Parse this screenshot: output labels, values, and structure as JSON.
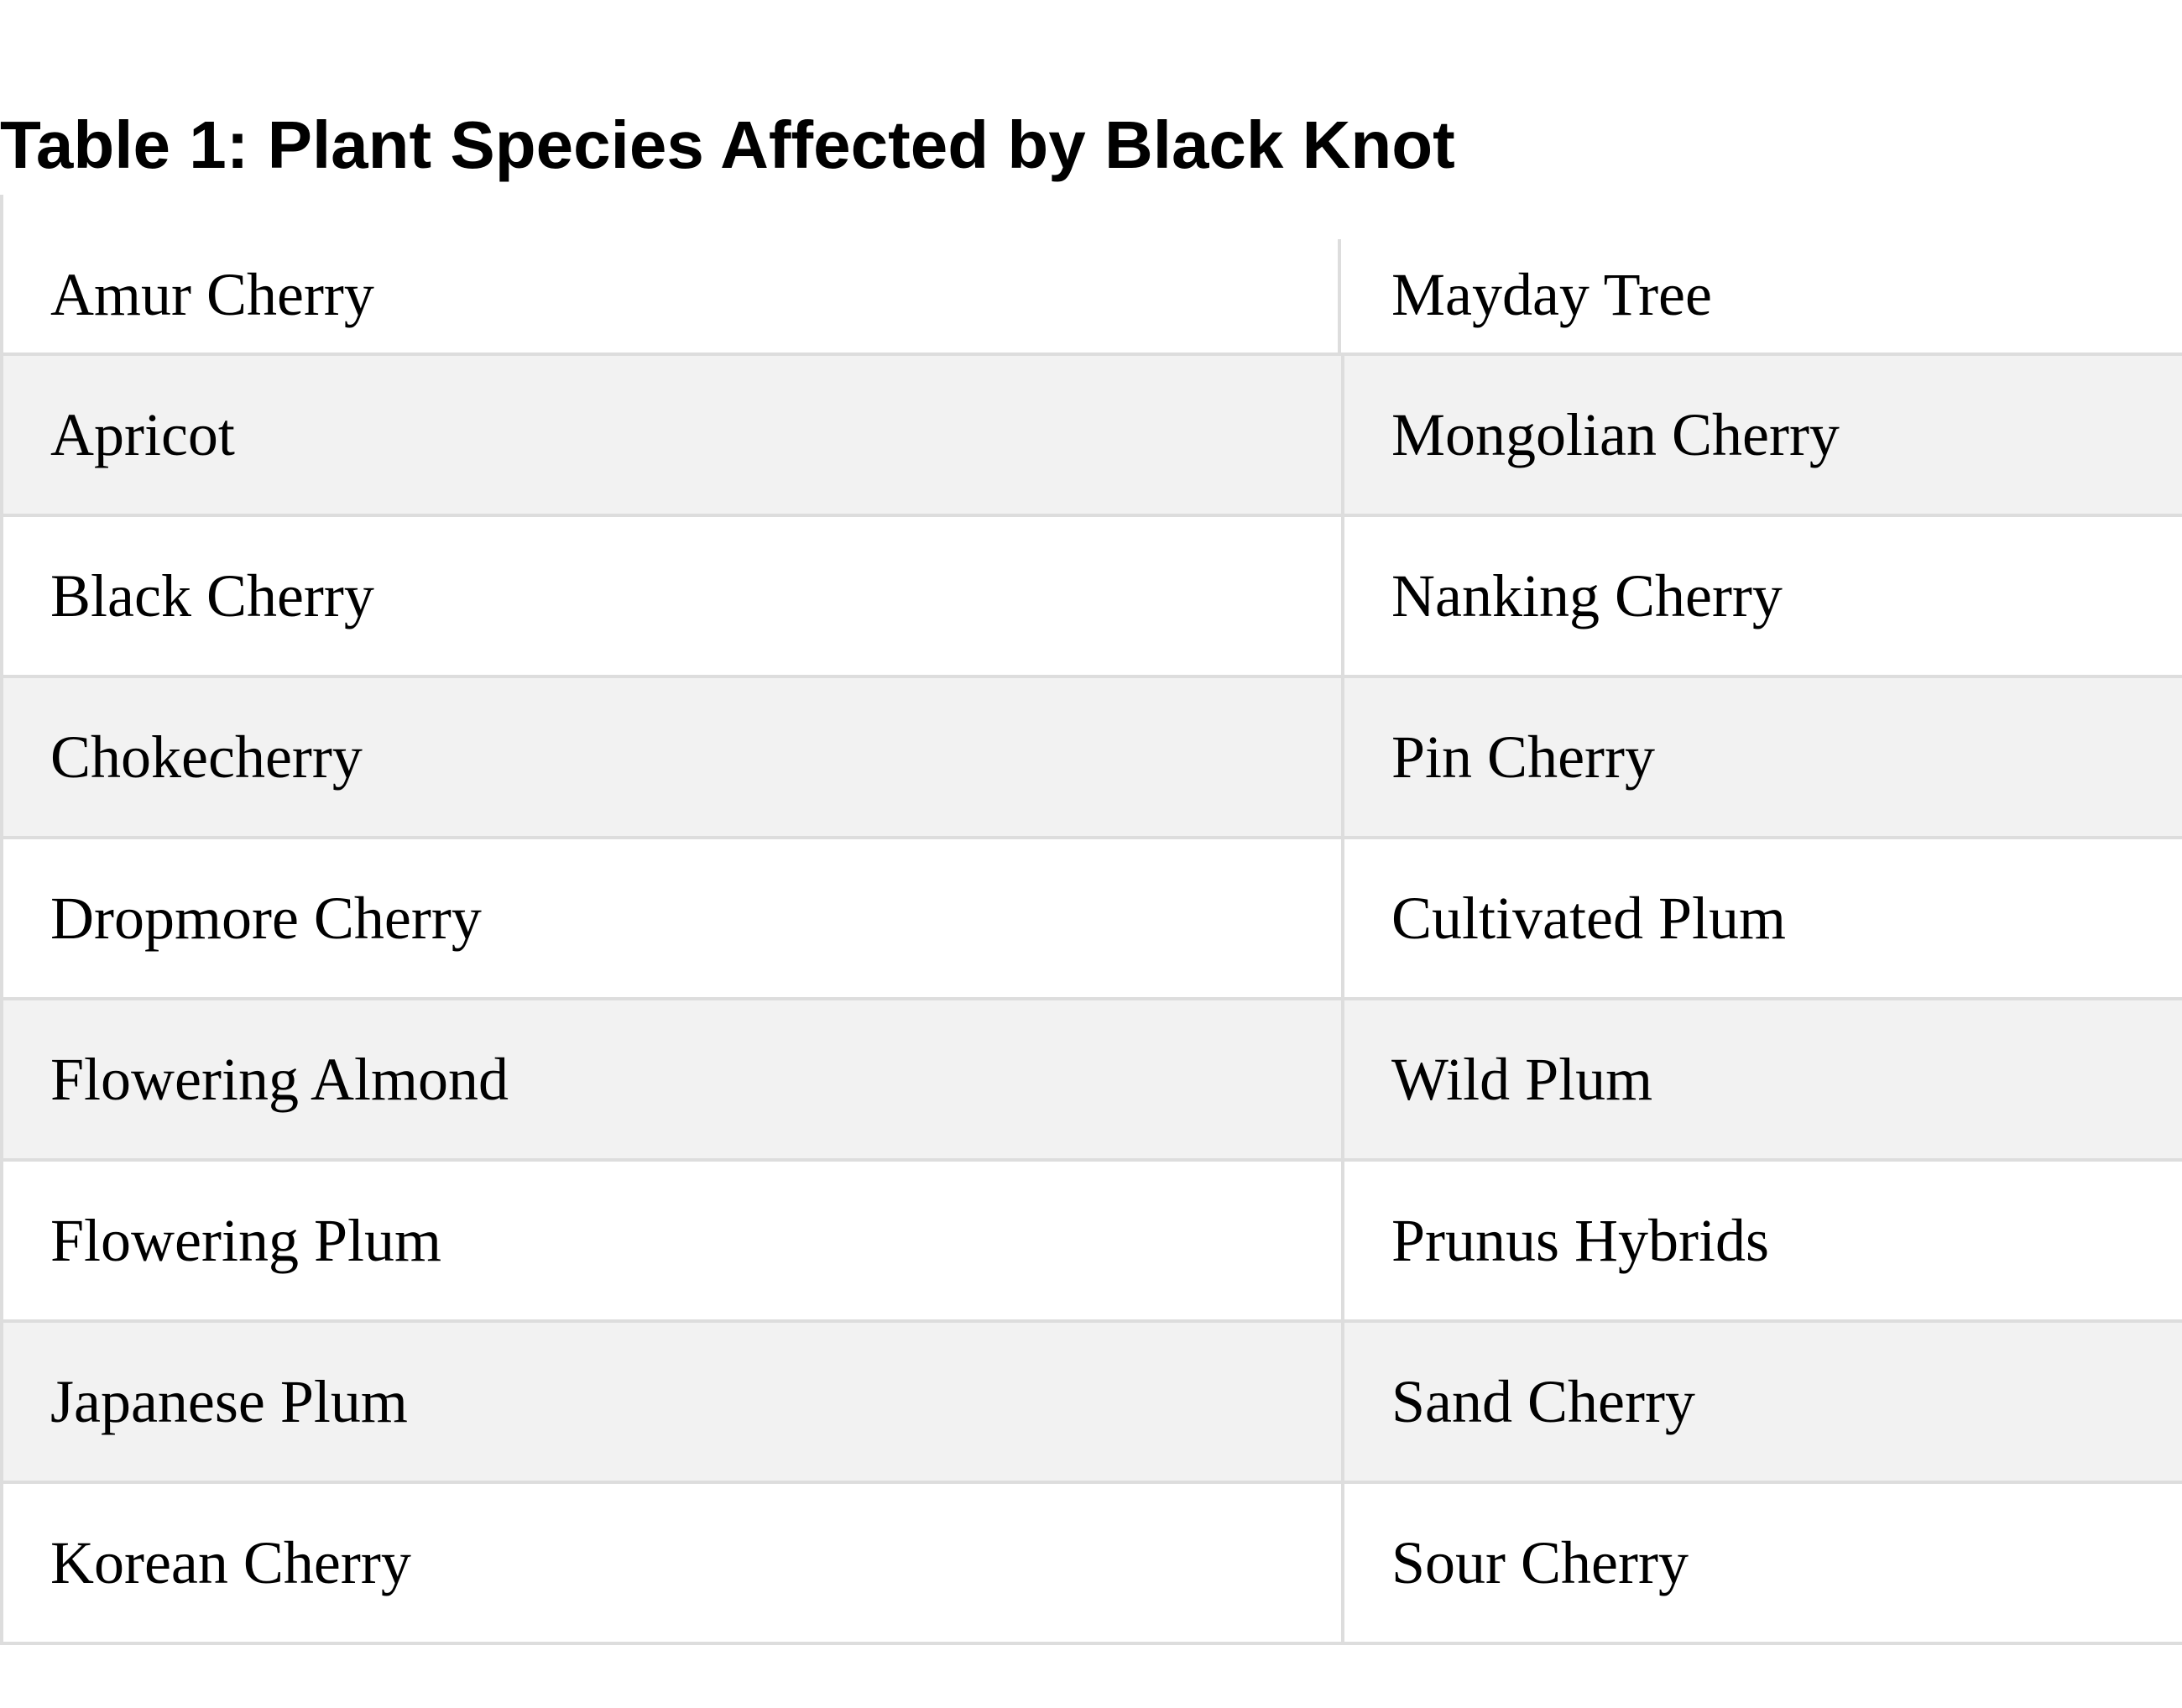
{
  "header": {
    "title": "Table 1: Plant Species Affected by Black Knot"
  },
  "table": {
    "rows": [
      [
        "Amur Cherry",
        "Mayday Tree"
      ],
      [
        "Apricot",
        "Mongolian Cherry"
      ],
      [
        "Black Cherry",
        "Nanking Cherry"
      ],
      [
        "Chokecherry",
        "Pin Cherry"
      ],
      [
        "Dropmore Cherry",
        "Cultivated Plum"
      ],
      [
        "Flowering Almond",
        "Wild Plum"
      ],
      [
        "Flowering Plum",
        "Prunus Hybrids"
      ],
      [
        "Japanese Plum",
        "Sand Cherry"
      ],
      [
        "Korean Cherry",
        "Sour Cherry"
      ]
    ]
  }
}
